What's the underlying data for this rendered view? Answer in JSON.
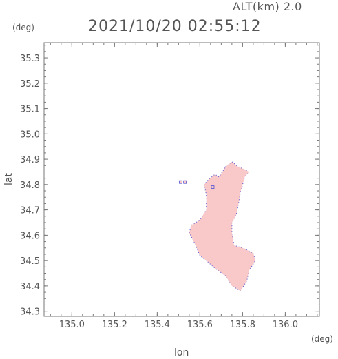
{
  "header": {
    "altitude_label": "ALT(km) 2.0",
    "timestamp": "2021/10/20 02:55:12"
  },
  "axes": {
    "lat_unit": "(deg)",
    "lon_unit": "(deg)",
    "xlabel": "lon",
    "ylabel": "lat"
  },
  "chart_data": {
    "type": "heatmap",
    "xlabel": "lon",
    "ylabel": "lat",
    "xlim": [
      134.87,
      136.16
    ],
    "ylim": [
      34.28,
      35.36
    ],
    "x_ticks": [
      "135.0",
      "135.2",
      "135.4",
      "135.6",
      "135.8",
      "136.0"
    ],
    "y_ticks": [
      "34.3",
      "34.4",
      "34.5",
      "34.6",
      "34.7",
      "34.8",
      "34.9",
      "35.0",
      "35.1",
      "35.2",
      "35.3"
    ],
    "region_outline": [
      [
        135.72,
        34.87
      ],
      [
        135.75,
        34.89
      ],
      [
        135.78,
        34.87
      ],
      [
        135.81,
        34.86
      ],
      [
        135.83,
        34.85
      ],
      [
        135.81,
        34.83
      ],
      [
        135.8,
        34.8
      ],
      [
        135.79,
        34.77
      ],
      [
        135.78,
        34.72
      ],
      [
        135.77,
        34.68
      ],
      [
        135.75,
        34.65
      ],
      [
        135.75,
        34.61
      ],
      [
        135.76,
        34.56
      ],
      [
        135.8,
        34.55
      ],
      [
        135.85,
        34.53
      ],
      [
        135.86,
        34.5
      ],
      [
        135.83,
        34.46
      ],
      [
        135.82,
        34.42
      ],
      [
        135.79,
        34.38
      ],
      [
        135.75,
        34.4
      ],
      [
        135.72,
        34.44
      ],
      [
        135.67,
        34.47
      ],
      [
        135.63,
        34.5
      ],
      [
        135.6,
        34.52
      ],
      [
        135.58,
        34.56
      ],
      [
        135.55,
        34.61
      ],
      [
        135.56,
        34.64
      ],
      [
        135.6,
        34.66
      ],
      [
        135.63,
        34.7
      ],
      [
        135.63,
        34.76
      ],
      [
        135.62,
        34.8
      ],
      [
        135.64,
        34.82
      ],
      [
        135.67,
        34.84
      ],
      [
        135.69,
        34.83
      ]
    ],
    "fill_color": "#f9c8c8",
    "edge_color": "#5050d0",
    "small_cells": [
      [
        135.51,
        34.81
      ],
      [
        135.53,
        34.81
      ],
      [
        135.66,
        34.79
      ]
    ]
  }
}
